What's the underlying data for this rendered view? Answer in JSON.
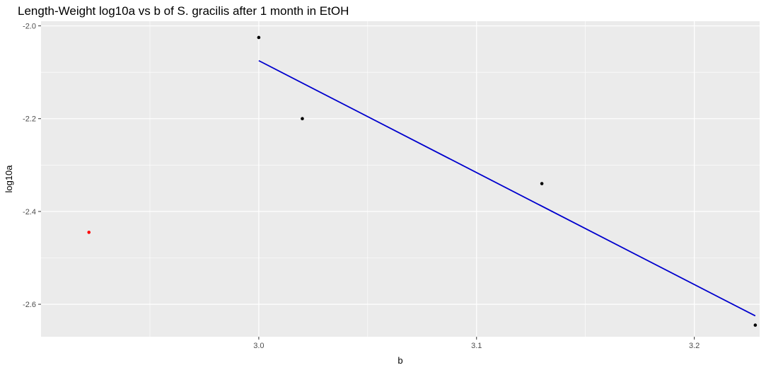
{
  "chart_data": {
    "type": "scatter",
    "title": "Length-Weight log10a vs b of S. gracilis after 1 month in EtOH",
    "xlabel": "b",
    "ylabel": "log10a",
    "xlim": [
      2.9,
      3.23
    ],
    "ylim": [
      -2.67,
      -1.99
    ],
    "x_ticks": [
      3.0,
      3.1,
      3.2
    ],
    "x_tick_labels": [
      "3.0",
      "3.1",
      "3.2"
    ],
    "x_minor_ticks": [
      2.95,
      3.05,
      3.15
    ],
    "y_ticks": [
      -2.0,
      -2.2,
      -2.4,
      -2.6
    ],
    "y_tick_labels": [
      "-2.0",
      "-2.2",
      "-2.4",
      "-2.6"
    ],
    "y_minor_ticks": [
      -2.1,
      -2.3,
      -2.5
    ],
    "grid": true,
    "panel_color": "#ebebeb",
    "series": [
      {
        "color": "#000000",
        "points": [
          {
            "x": 3.0,
            "y": -2.025
          },
          {
            "x": 3.02,
            "y": -2.2
          },
          {
            "x": 3.13,
            "y": -2.34
          },
          {
            "x": 3.228,
            "y": -2.645
          }
        ]
      },
      {
        "color": "#ff0000",
        "points": [
          {
            "x": 2.922,
            "y": -2.445
          }
        ]
      }
    ],
    "trend_line": {
      "color": "#0000cd",
      "x": [
        3.0,
        3.228
      ],
      "y": [
        -2.075,
        -2.625
      ]
    }
  }
}
